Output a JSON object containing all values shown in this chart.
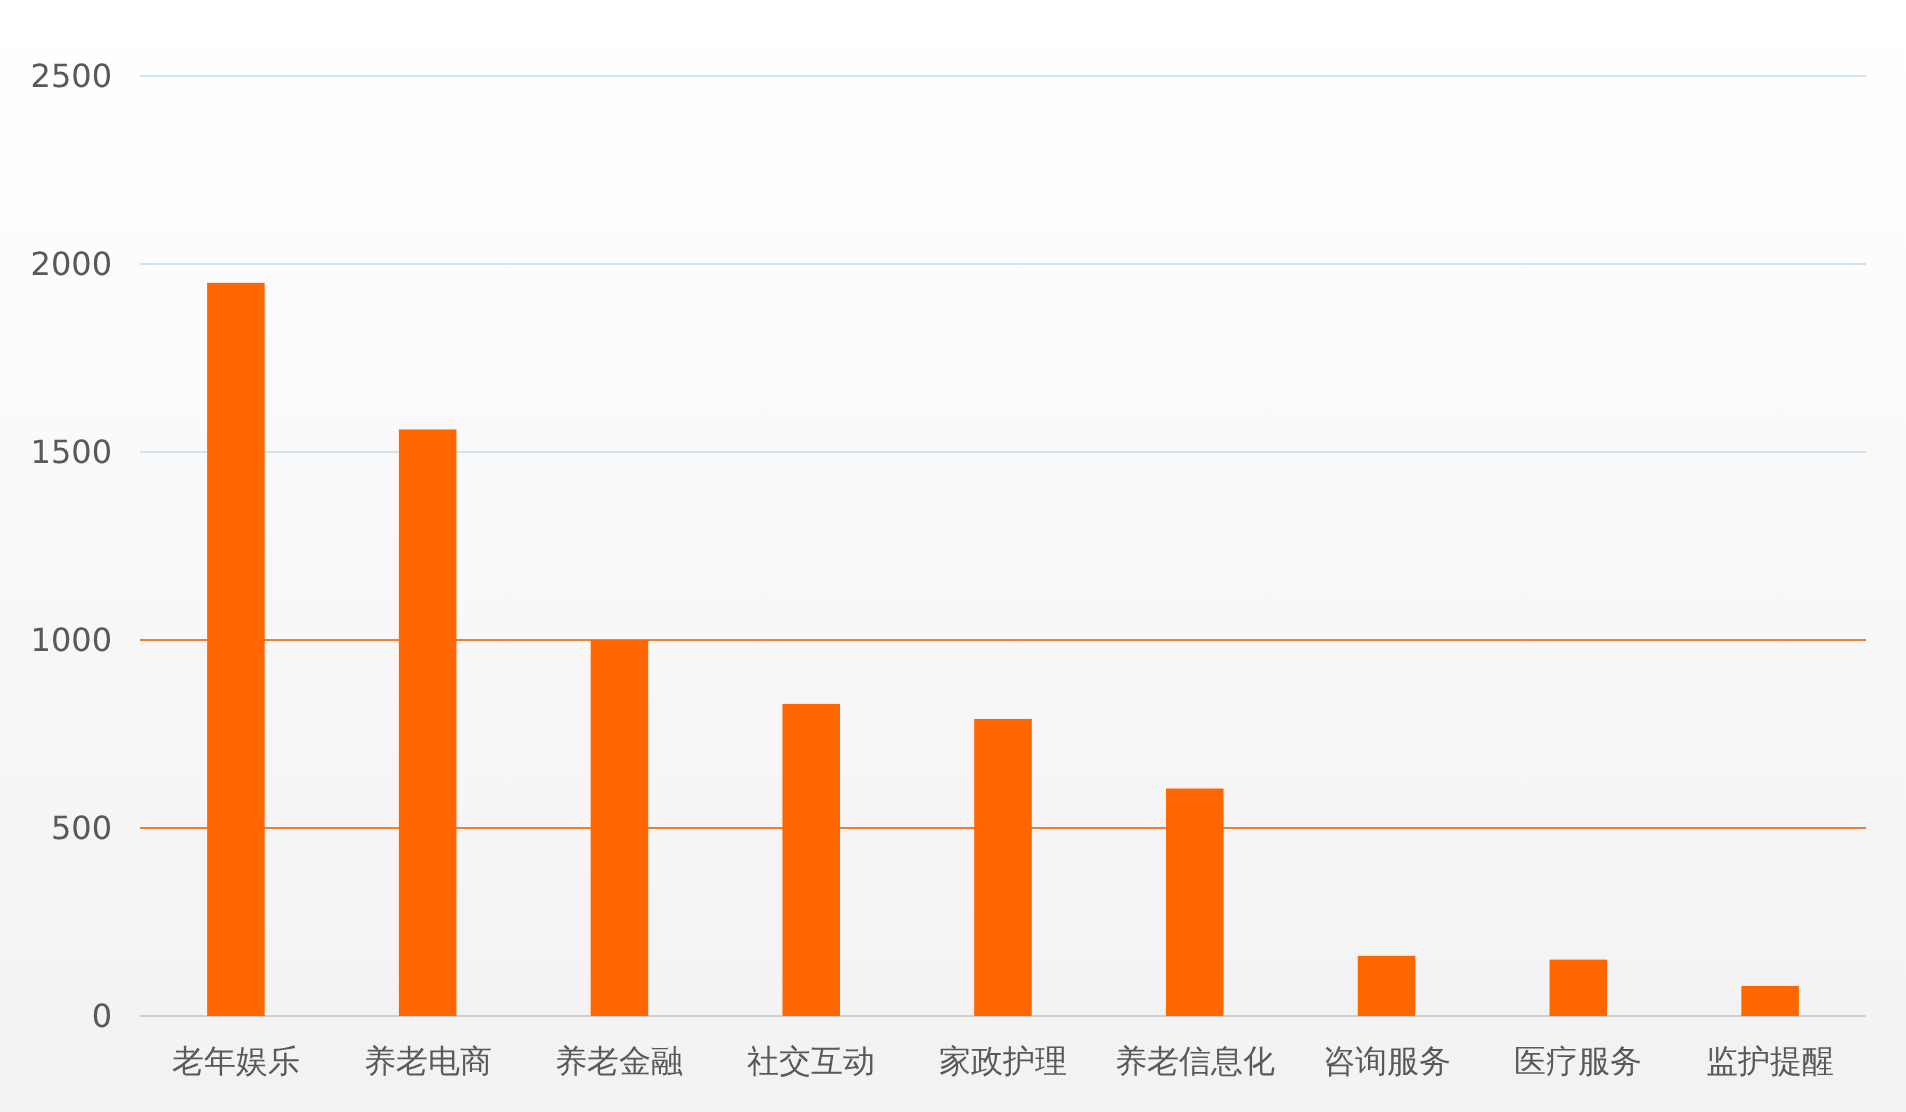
{
  "chart_data": {
    "type": "bar",
    "categories": [
      "老年娱乐",
      "养老电商",
      "养老金融",
      "社交互动",
      "家政护理",
      "养老信息化",
      "咨询服务",
      "医疗服务",
      "监护提醒"
    ],
    "values": [
      1950,
      1560,
      1000,
      830,
      790,
      605,
      160,
      150,
      80
    ],
    "color": "#ff6600",
    "ylim": [
      0,
      2500
    ],
    "yticks": [
      0,
      500,
      1000,
      1500,
      2000,
      2500
    ],
    "grid": "y"
  }
}
